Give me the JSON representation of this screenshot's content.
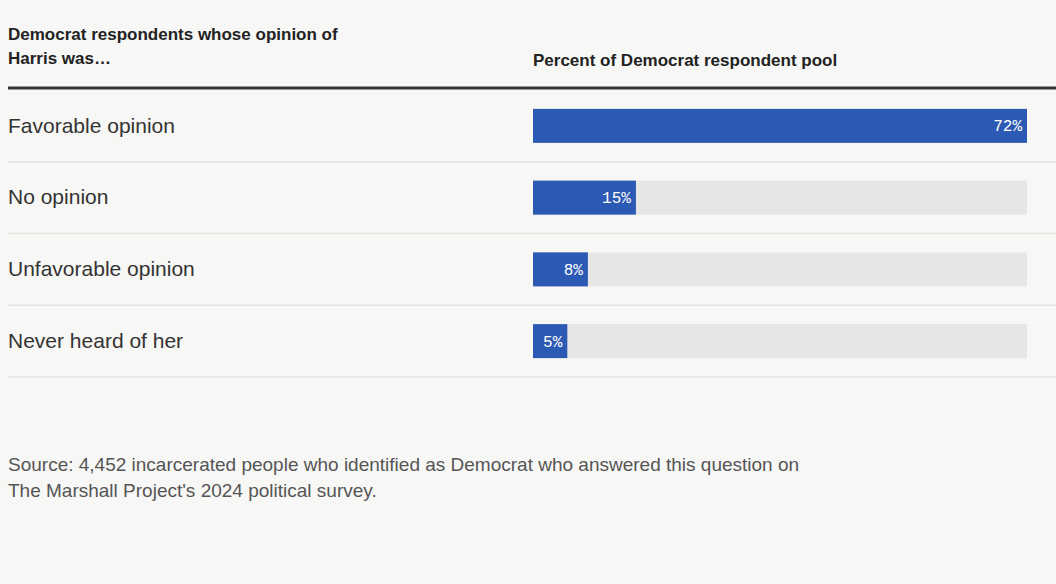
{
  "chart_data": {
    "type": "bar",
    "orientation": "horizontal",
    "y_label": [
      "Democrat respondents whose opinion of",
      "Harris was…"
    ],
    "x_label": "Percent of Democrat respondent pool",
    "categories": [
      "Favorable opinion",
      "No opinion",
      "Unfavorable opinion",
      "Never heard of her"
    ],
    "values": [
      72,
      15,
      8,
      5
    ],
    "value_labels": [
      "72%",
      "15%",
      "8%",
      "5%"
    ],
    "data_labels": true,
    "color": "#2b59b3",
    "xlim": [
      0,
      72
    ],
    "tick_labels": false,
    "annotations": [
      "Source: 4,452 incarcerated people who identified as Democrat who answered this question on",
      "The Marshall Project's 2024 political survey."
    ]
  }
}
